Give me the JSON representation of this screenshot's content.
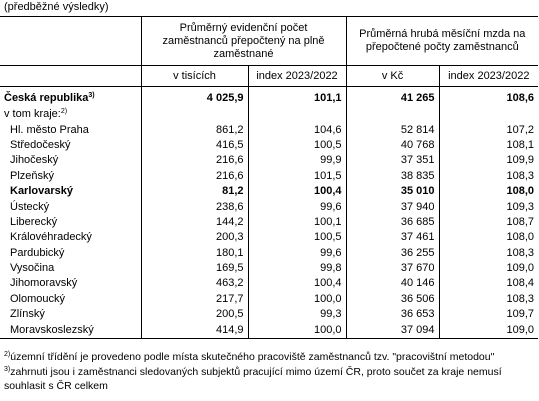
{
  "caption": "(předběžné výsledky)",
  "headers": {
    "group1": "Průměrný evidenční počet zaměstnanců přepočtený na plně zaměstnané",
    "group2": "Průměrná hrubá měsíční mzda na přepočtené počty zaměstnanců",
    "sub1": "v tisících",
    "sub2": "index 2023/2022",
    "sub3": "v Kč",
    "sub4": "index 2023/2022"
  },
  "rows": [
    {
      "label": "Česká republika",
      "sup": "3)",
      "c1": "4 025,9",
      "c2": "101,1",
      "c3": "41 265",
      "c4": "108,6"
    },
    {
      "label": "v tom kraje:",
      "sup": "2)",
      "c1": "",
      "c2": "",
      "c3": "",
      "c4": ""
    },
    {
      "label": "Hl. město Praha",
      "c1": "861,2",
      "c2": "104,6",
      "c3": "52 814",
      "c4": "107,2"
    },
    {
      "label": "Středočeský",
      "c1": "416,5",
      "c2": "100,5",
      "c3": "40 768",
      "c4": "108,1"
    },
    {
      "label": "Jihočeský",
      "c1": "216,6",
      "c2": "99,9",
      "c3": "37 351",
      "c4": "109,9"
    },
    {
      "label": "Plzeňský",
      "c1": "216,6",
      "c2": "101,5",
      "c3": "38 835",
      "c4": "108,3"
    },
    {
      "label": "Karlovarský",
      "c1": "81,2",
      "c2": "100,4",
      "c3": "35 010",
      "c4": "108,0"
    },
    {
      "label": "Ústecký",
      "c1": "238,6",
      "c2": "99,6",
      "c3": "37 940",
      "c4": "109,3"
    },
    {
      "label": "Liberecký",
      "c1": "144,2",
      "c2": "100,1",
      "c3": "36 685",
      "c4": "108,7"
    },
    {
      "label": "Královéhradecký",
      "c1": "200,3",
      "c2": "100,5",
      "c3": "37 461",
      "c4": "108,0"
    },
    {
      "label": "Pardubický",
      "c1": "180,1",
      "c2": "99,6",
      "c3": "36 255",
      "c4": "108,3"
    },
    {
      "label": "Vysočina",
      "c1": "169,5",
      "c2": "99,8",
      "c3": "37 670",
      "c4": "109,0"
    },
    {
      "label": "Jihomoravský",
      "c1": "463,2",
      "c2": "100,4",
      "c3": "40 146",
      "c4": "108,4"
    },
    {
      "label": "Olomoucký",
      "c1": "217,7",
      "c2": "100,0",
      "c3": "36 506",
      "c4": "108,3"
    },
    {
      "label": "Zlínský",
      "c1": "200,5",
      "c2": "99,3",
      "c3": "36 653",
      "c4": "109,7"
    },
    {
      "label": "Moravskoslezský",
      "c1": "414,9",
      "c2": "100,0",
      "c3": "37 094",
      "c4": "109,0"
    }
  ],
  "notes": {
    "n2_mark": "2)",
    "n2": "územní třídění je provedeno podle místa skutečného pracoviště zaměstnanců tzv. \"pracovištní metodou\"",
    "n3_mark": "3)",
    "n3a": "zahrnuti jsou i zaměstnanci sledovaných subjektů pracující mimo území ČR, proto součet za kraje nemusí",
    "n3b": "souhlasit s ČR celkem"
  }
}
